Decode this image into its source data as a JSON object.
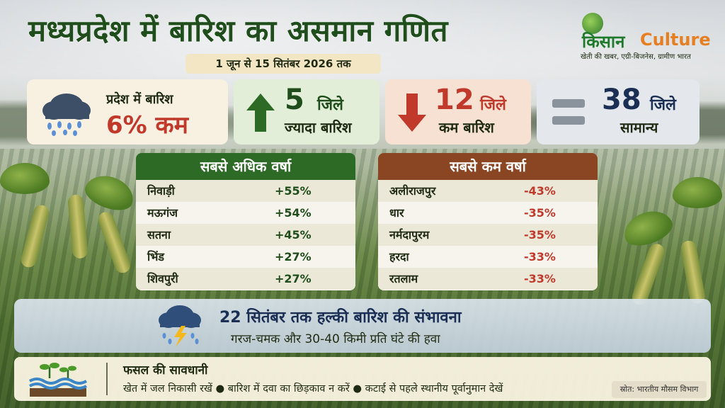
{
  "header": {
    "title": "मध्यप्रदेश में बारिश का असमान गणित",
    "date_range": "1 जून से 15 सितंबर 2026 तक"
  },
  "logo": {
    "name_hindi": "किसान",
    "name_english": "Culture",
    "tagline": "खेती की खबर, एग्री-बिजनेस, ग्रामीण भारत"
  },
  "stats": {
    "state_rain": {
      "label": "प्रदेश में बारिश",
      "value": "6% कम",
      "icon": "rain-cloud-icon"
    },
    "more_rain": {
      "count": "5",
      "unit": "जिले",
      "label": "ज्यादा बारिश",
      "icon": "arrow-up-icon"
    },
    "less_rain": {
      "count": "12",
      "unit": "जिले",
      "label": "कम बारिश",
      "icon": "arrow-down-icon"
    },
    "normal": {
      "count": "38",
      "unit": "जिले",
      "label": "सामान्य",
      "icon": "equals-icon"
    }
  },
  "highest_rain": {
    "title": "सबसे अधिक वर्षा",
    "rows": [
      {
        "district": "निवाड़ी",
        "value": "+55%"
      },
      {
        "district": "मऊगंज",
        "value": "+54%"
      },
      {
        "district": "सतना",
        "value": "+45%"
      },
      {
        "district": "भिंड",
        "value": "+27%"
      },
      {
        "district": "शिवपुरी",
        "value": "+27%"
      }
    ]
  },
  "lowest_rain": {
    "title": "सबसे कम वर्षा",
    "rows": [
      {
        "district": "अलीराजपुर",
        "value": "-43%"
      },
      {
        "district": "धार",
        "value": "-35%"
      },
      {
        "district": "नर्मदापुरम",
        "value": "-35%"
      },
      {
        "district": "हरदा",
        "value": "-33%"
      },
      {
        "district": "रतलाम",
        "value": "-33%"
      }
    ]
  },
  "forecast": {
    "title": "22 सितंबर तक हल्की बारिश की संभावना",
    "subtitle": "गरज-चमक और 30-40 किमी प्रति घंटे की हवा",
    "icon": "storm-cloud-icon"
  },
  "crop_care": {
    "title": "फसल की सावधानी",
    "tips": "खेत में जल निकासी रखें  ●  बारिश में दवा का छिड़काव न करें  ●  कटाई से पहले स्थानीय पूर्वानुमान देखें",
    "icon": "seedling-water-icon",
    "source": "स्रोत: भारतीय मौसम विभाग"
  },
  "colors": {
    "title_green": "#1f4d1b",
    "danger_red": "#c0392b",
    "table_green": "#2c6a25",
    "table_brown": "#8a4523",
    "logo_orange": "#e67e22"
  }
}
